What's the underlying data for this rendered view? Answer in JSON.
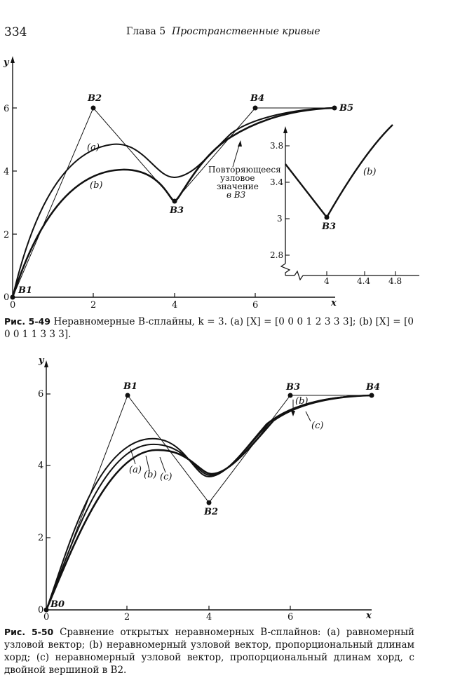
{
  "page": {
    "number": "334",
    "running_head_prefix": "Глава 5",
    "running_head_title": "Пространственные кривые"
  },
  "figure_549": {
    "caption_label": "Рис. 5-49",
    "caption_text": "Неравномерные B-сплайны, k = 3. (a) [X] = [0 0 0 1 2 3 3 3]; (b) [X] = [0 0 0 1 1 3 3 3].",
    "x_axis_label": "x",
    "y_axis_label": "y",
    "x_ticks": [
      "0",
      "2",
      "4",
      "6"
    ],
    "y_ticks": [
      "0",
      "2",
      "4",
      "6"
    ],
    "points": [
      "B1",
      "B2",
      "B3",
      "B4",
      "B5"
    ],
    "curve_labels": [
      "(a)",
      "(b)"
    ],
    "annotation": [
      "Повторяющееся",
      "узловое",
      "значение",
      "в B3"
    ],
    "inset": {
      "curve_label": "(b)",
      "point_label": "B3",
      "x_ticks": [
        "4",
        "4.4",
        "4.8"
      ],
      "y_ticks": [
        "2.8",
        "3",
        "3.4",
        "3.8"
      ]
    }
  },
  "figure_550": {
    "caption_label": "Рис. 5-50",
    "caption_text": "Сравнение открытых неравномерных B-сплайнов: (a) равномерный узловой вектор; (b) неравномерный узловой вектор, пропорциональный длинам хорд; (c) неравномерный узловой вектор, пропорциональный длинам хорд, с двойной вершиной в B2.",
    "x_axis_label": "x",
    "y_axis_label": "y",
    "x_ticks": [
      "0",
      "2",
      "4",
      "6"
    ],
    "y_ticks": [
      "0",
      "2",
      "4",
      "6"
    ],
    "points": [
      "B0",
      "B1",
      "B2",
      "B3",
      "B4"
    ],
    "curve_labels": [
      "(a)",
      "(b)",
      "(c)"
    ],
    "right_labels": [
      "(b)",
      "(c)"
    ]
  }
}
